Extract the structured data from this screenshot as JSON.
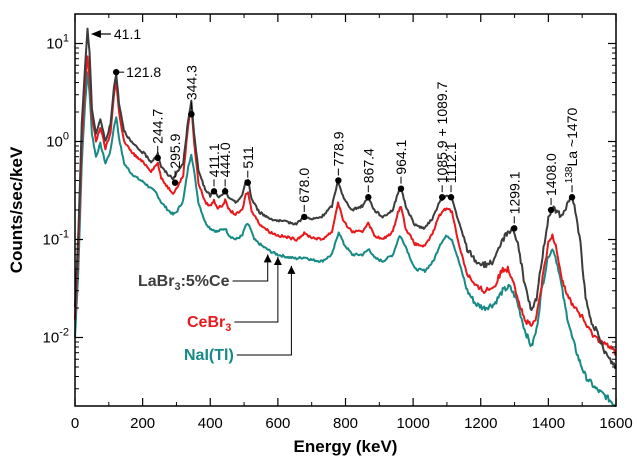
{
  "chart_data": {
    "type": "line",
    "xlabel": "Energy (keV)",
    "ylabel": "Counts/sec/keV",
    "xlim": [
      0,
      1600
    ],
    "ylim": [
      0.002,
      20
    ],
    "yscale": "log",
    "xticks": [
      0,
      200,
      400,
      600,
      800,
      1000,
      1200,
      1400,
      1600
    ],
    "xtick_labels": [
      "0",
      "200",
      "400",
      "600",
      "800",
      "1000",
      "1200",
      "1400",
      "1600"
    ],
    "yticks": [
      {
        "value": 10,
        "base": "10",
        "exp": "1"
      },
      {
        "value": 1,
        "base": "10",
        "exp": "0"
      },
      {
        "value": 0.1,
        "base": "10",
        "exp": "-1"
      },
      {
        "value": 0.01,
        "base": "10",
        "exp": "-2"
      }
    ],
    "grid": false,
    "legend": {
      "placement": "bottom-left",
      "entries": [
        {
          "prefix": "LaBr",
          "sub": "3",
          "suffix": ":5%Ce",
          "color": "#3c3c3c",
          "x": 570,
          "y": 0.085
        },
        {
          "prefix": "CeBr",
          "sub": "3",
          "suffix": "",
          "color": "#e8191c",
          "x": 600,
          "y": 0.08
        },
        {
          "prefix": "NaI(Tl)",
          "sub": "",
          "suffix": "",
          "color": "#178a85",
          "x": 640,
          "y": 0.065
        }
      ]
    },
    "peak_labels": [
      {
        "text": "41.1",
        "x": 41.1,
        "marker": "arrow"
      },
      {
        "text": "121.8",
        "x": 121.8,
        "y": 5.1
      },
      {
        "text": "244.7",
        "x": 244.7,
        "y": 0.68
      },
      {
        "text": "295.9",
        "x": 295.9,
        "y": 0.38
      },
      {
        "text": "344.3",
        "x": 344.3,
        "y": 1.9
      },
      {
        "text": "411.1",
        "x": 411.1,
        "y": 0.31
      },
      {
        "text": "444.0",
        "x": 444,
        "y": 0.31
      },
      {
        "text": "511",
        "x": 511,
        "y": 0.38
      },
      {
        "text": "678.0",
        "x": 678,
        "y": 0.17
      },
      {
        "text": "778.9",
        "x": 778.9,
        "y": 0.4
      },
      {
        "text": "867.4",
        "x": 867.4,
        "y": 0.27
      },
      {
        "text": "964.1",
        "x": 964.1,
        "y": 0.33
      },
      {
        "text": "1085.9 + 1089.7",
        "x": 1085.9,
        "y": 0.27
      },
      {
        "text": "1112.1",
        "x": 1112.1,
        "y": 0.27
      },
      {
        "text": "1299.1",
        "x": 1299.1,
        "y": 0.13
      },
      {
        "text": "1408.0",
        "x": 1408,
        "y": 0.2
      },
      {
        "text": "La ~1470",
        "sup": "138",
        "x": 1470,
        "y": 0.27
      }
    ],
    "series": [
      {
        "name": "LaBr3:5%Ce",
        "color": "#3c3c3c",
        "points": [
          [
            0,
            0.02
          ],
          [
            10,
            0.12
          ],
          [
            20,
            1.5
          ],
          [
            30,
            6.0
          ],
          [
            37,
            14.0
          ],
          [
            43,
            8.0
          ],
          [
            50,
            2.2
          ],
          [
            62,
            1.2
          ],
          [
            75,
            1.7
          ],
          [
            90,
            1.0
          ],
          [
            105,
            1.5
          ],
          [
            115,
            3.5
          ],
          [
            122,
            5.0
          ],
          [
            130,
            2.5
          ],
          [
            145,
            1.3
          ],
          [
            165,
            1.0
          ],
          [
            185,
            0.85
          ],
          [
            205,
            0.75
          ],
          [
            225,
            0.62
          ],
          [
            235,
            0.68
          ],
          [
            245,
            0.75
          ],
          [
            255,
            0.55
          ],
          [
            275,
            0.46
          ],
          [
            290,
            0.42
          ],
          [
            300,
            0.47
          ],
          [
            320,
            0.6
          ],
          [
            335,
            1.7
          ],
          [
            344,
            2.6
          ],
          [
            352,
            1.2
          ],
          [
            365,
            0.52
          ],
          [
            385,
            0.32
          ],
          [
            400,
            0.28
          ],
          [
            411,
            0.33
          ],
          [
            422,
            0.27
          ],
          [
            435,
            0.28
          ],
          [
            444,
            0.33
          ],
          [
            456,
            0.26
          ],
          [
            475,
            0.24
          ],
          [
            495,
            0.28
          ],
          [
            505,
            0.4
          ],
          [
            512,
            0.41
          ],
          [
            522,
            0.26
          ],
          [
            545,
            0.19
          ],
          [
            575,
            0.165
          ],
          [
            600,
            0.155
          ],
          [
            630,
            0.15
          ],
          [
            655,
            0.145
          ],
          [
            678,
            0.17
          ],
          [
            700,
            0.16
          ],
          [
            730,
            0.17
          ],
          [
            760,
            0.22
          ],
          [
            778,
            0.4
          ],
          [
            795,
            0.26
          ],
          [
            820,
            0.2
          ],
          [
            850,
            0.22
          ],
          [
            867,
            0.27
          ],
          [
            885,
            0.2
          ],
          [
            910,
            0.17
          ],
          [
            940,
            0.2
          ],
          [
            955,
            0.3
          ],
          [
            964,
            0.34
          ],
          [
            978,
            0.22
          ],
          [
            1005,
            0.14
          ],
          [
            1035,
            0.13
          ],
          [
            1060,
            0.17
          ],
          [
            1075,
            0.23
          ],
          [
            1090,
            0.27
          ],
          [
            1105,
            0.28
          ],
          [
            1115,
            0.26
          ],
          [
            1135,
            0.15
          ],
          [
            1160,
            0.08
          ],
          [
            1185,
            0.06
          ],
          [
            1210,
            0.055
          ],
          [
            1240,
            0.06
          ],
          [
            1265,
            0.1
          ],
          [
            1280,
            0.12
          ],
          [
            1295,
            0.13
          ],
          [
            1310,
            0.09
          ],
          [
            1330,
            0.035
          ],
          [
            1350,
            0.018
          ],
          [
            1365,
            0.025
          ],
          [
            1380,
            0.06
          ],
          [
            1400,
            0.17
          ],
          [
            1412,
            0.21
          ],
          [
            1425,
            0.19
          ],
          [
            1440,
            0.17
          ],
          [
            1455,
            0.23
          ],
          [
            1468,
            0.27
          ],
          [
            1480,
            0.2
          ],
          [
            1495,
            0.09
          ],
          [
            1510,
            0.025
          ],
          [
            1525,
            0.015
          ],
          [
            1540,
            0.012
          ],
          [
            1560,
            0.008
          ],
          [
            1580,
            0.006
          ],
          [
            1600,
            0.005
          ]
        ]
      },
      {
        "name": "CeBr3",
        "color": "#e8191c",
        "points": [
          [
            0,
            0.015
          ],
          [
            10,
            0.08
          ],
          [
            20,
            1.0
          ],
          [
            30,
            4.0
          ],
          [
            37,
            7.5
          ],
          [
            43,
            4.5
          ],
          [
            50,
            1.8
          ],
          [
            62,
            1.0
          ],
          [
            75,
            1.4
          ],
          [
            90,
            0.85
          ],
          [
            105,
            1.2
          ],
          [
            115,
            3.0
          ],
          [
            122,
            4.2
          ],
          [
            130,
            2.0
          ],
          [
            145,
            1.0
          ],
          [
            165,
            0.8
          ],
          [
            185,
            0.68
          ],
          [
            205,
            0.6
          ],
          [
            225,
            0.5
          ],
          [
            235,
            0.55
          ],
          [
            245,
            0.6
          ],
          [
            255,
            0.42
          ],
          [
            275,
            0.34
          ],
          [
            290,
            0.3
          ],
          [
            300,
            0.33
          ],
          [
            320,
            0.45
          ],
          [
            335,
            1.5
          ],
          [
            344,
            2.4
          ],
          [
            352,
            1.0
          ],
          [
            365,
            0.38
          ],
          [
            385,
            0.24
          ],
          [
            400,
            0.22
          ],
          [
            411,
            0.25
          ],
          [
            422,
            0.21
          ],
          [
            435,
            0.22
          ],
          [
            444,
            0.25
          ],
          [
            456,
            0.2
          ],
          [
            475,
            0.18
          ],
          [
            495,
            0.2
          ],
          [
            505,
            0.29
          ],
          [
            512,
            0.3
          ],
          [
            522,
            0.2
          ],
          [
            545,
            0.145
          ],
          [
            575,
            0.12
          ],
          [
            600,
            0.11
          ],
          [
            630,
            0.105
          ],
          [
            655,
            0.1
          ],
          [
            678,
            0.115
          ],
          [
            700,
            0.105
          ],
          [
            730,
            0.1
          ],
          [
            760,
            0.12
          ],
          [
            778,
            0.24
          ],
          [
            795,
            0.15
          ],
          [
            820,
            0.12
          ],
          [
            850,
            0.12
          ],
          [
            867,
            0.15
          ],
          [
            885,
            0.11
          ],
          [
            910,
            0.1
          ],
          [
            940,
            0.12
          ],
          [
            955,
            0.19
          ],
          [
            964,
            0.22
          ],
          [
            978,
            0.13
          ],
          [
            1005,
            0.09
          ],
          [
            1035,
            0.085
          ],
          [
            1060,
            0.12
          ],
          [
            1075,
            0.17
          ],
          [
            1090,
            0.2
          ],
          [
            1105,
            0.21
          ],
          [
            1115,
            0.19
          ],
          [
            1135,
            0.09
          ],
          [
            1160,
            0.045
          ],
          [
            1185,
            0.033
          ],
          [
            1210,
            0.03
          ],
          [
            1240,
            0.033
          ],
          [
            1265,
            0.05
          ],
          [
            1280,
            0.05
          ],
          [
            1295,
            0.04
          ],
          [
            1310,
            0.025
          ],
          [
            1330,
            0.015
          ],
          [
            1350,
            0.013
          ],
          [
            1365,
            0.016
          ],
          [
            1380,
            0.035
          ],
          [
            1400,
            0.09
          ],
          [
            1412,
            0.11
          ],
          [
            1425,
            0.08
          ],
          [
            1440,
            0.04
          ],
          [
            1460,
            0.025
          ],
          [
            1480,
            0.02
          ],
          [
            1500,
            0.016
          ],
          [
            1520,
            0.012
          ],
          [
            1540,
            0.01
          ],
          [
            1560,
            0.009
          ],
          [
            1580,
            0.008
          ],
          [
            1600,
            0.007
          ]
        ]
      },
      {
        "name": "NaI(Tl)",
        "color": "#178a85",
        "points": [
          [
            0,
            0.01
          ],
          [
            10,
            0.05
          ],
          [
            20,
            0.6
          ],
          [
            30,
            2.5
          ],
          [
            37,
            5.0
          ],
          [
            43,
            3.2
          ],
          [
            50,
            1.2
          ],
          [
            62,
            0.7
          ],
          [
            75,
            0.95
          ],
          [
            90,
            0.6
          ],
          [
            105,
            0.8
          ],
          [
            115,
            1.4
          ],
          [
            122,
            1.8
          ],
          [
            130,
            1.1
          ],
          [
            145,
            0.6
          ],
          [
            165,
            0.48
          ],
          [
            185,
            0.42
          ],
          [
            205,
            0.38
          ],
          [
            225,
            0.33
          ],
          [
            240,
            0.3
          ],
          [
            255,
            0.24
          ],
          [
            275,
            0.2
          ],
          [
            290,
            0.18
          ],
          [
            300,
            0.19
          ],
          [
            320,
            0.25
          ],
          [
            335,
            0.55
          ],
          [
            344,
            0.75
          ],
          [
            352,
            0.5
          ],
          [
            365,
            0.24
          ],
          [
            385,
            0.15
          ],
          [
            400,
            0.13
          ],
          [
            420,
            0.12
          ],
          [
            444,
            0.13
          ],
          [
            456,
            0.11
          ],
          [
            475,
            0.1
          ],
          [
            495,
            0.11
          ],
          [
            505,
            0.14
          ],
          [
            515,
            0.14
          ],
          [
            530,
            0.1
          ],
          [
            555,
            0.085
          ],
          [
            580,
            0.075
          ],
          [
            600,
            0.07
          ],
          [
            630,
            0.066
          ],
          [
            655,
            0.064
          ],
          [
            680,
            0.066
          ],
          [
            700,
            0.062
          ],
          [
            730,
            0.06
          ],
          [
            760,
            0.07
          ],
          [
            780,
            0.12
          ],
          [
            795,
            0.09
          ],
          [
            820,
            0.07
          ],
          [
            850,
            0.07
          ],
          [
            870,
            0.08
          ],
          [
            885,
            0.065
          ],
          [
            910,
            0.06
          ],
          [
            940,
            0.07
          ],
          [
            960,
            0.11
          ],
          [
            975,
            0.09
          ],
          [
            1005,
            0.05
          ],
          [
            1035,
            0.048
          ],
          [
            1060,
            0.06
          ],
          [
            1080,
            0.09
          ],
          [
            1100,
            0.11
          ],
          [
            1115,
            0.1
          ],
          [
            1135,
            0.06
          ],
          [
            1160,
            0.03
          ],
          [
            1185,
            0.022
          ],
          [
            1210,
            0.02
          ],
          [
            1240,
            0.022
          ],
          [
            1265,
            0.03
          ],
          [
            1285,
            0.033
          ],
          [
            1305,
            0.025
          ],
          [
            1330,
            0.012
          ],
          [
            1350,
            0.008
          ],
          [
            1365,
            0.012
          ],
          [
            1380,
            0.03
          ],
          [
            1400,
            0.07
          ],
          [
            1415,
            0.08
          ],
          [
            1430,
            0.05
          ],
          [
            1450,
            0.02
          ],
          [
            1470,
            0.01
          ],
          [
            1490,
            0.006
          ],
          [
            1510,
            0.004
          ],
          [
            1540,
            0.003
          ],
          [
            1570,
            0.0025
          ],
          [
            1600,
            0.002
          ]
        ]
      }
    ]
  }
}
